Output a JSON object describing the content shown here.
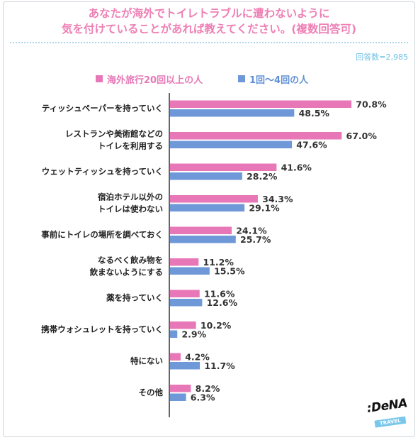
{
  "header": {
    "title_line1": "あなたが海外でトイレトラブルに遭わないように",
    "title_line2": "気を付けていることがあれば教えてください。(複数回答可)",
    "respondents": "回答数=2,985"
  },
  "colors": {
    "title": "#ee7fb4",
    "pink_bar": "#e777b7",
    "blue_bar": "#6f98d8",
    "legend_pink_text": "#e777b7",
    "legend_blue_text": "#5f8fd4",
    "axis": "#333333",
    "dots": "#a9d6ec",
    "respondents": "#6ec2e6"
  },
  "brand": {
    "logo_text": ":DeNA",
    "tag_text": "TRAVEL"
  },
  "chart_data": {
    "type": "bar",
    "orientation": "horizontal",
    "value_suffix": "%",
    "categories": [
      "ティッシュペーパーを持っていく",
      "レストランや美術館などの\nトイレを利用する",
      "ウェットティッシュを持っていく",
      "宿泊ホテル以外の\nトイレは使わない",
      "事前にトイレの場所を調べておく",
      "なるべく飲み物を\n飲まないようにする",
      "薬を持っていく",
      "携帯ウォシュレットを持っていく",
      "特にない",
      "その他"
    ],
    "series": [
      {
        "name": "海外旅行20回以上の人",
        "color": "#e777b7",
        "values": [
          70.8,
          67.0,
          41.6,
          34.3,
          24.1,
          11.2,
          11.6,
          10.2,
          4.2,
          8.2
        ]
      },
      {
        "name": "1回～4回の人",
        "color": "#6f98d8",
        "values": [
          48.5,
          47.6,
          28.2,
          29.1,
          25.7,
          15.5,
          12.6,
          2.9,
          11.7,
          6.3
        ]
      }
    ],
    "xlim": [
      0,
      80
    ],
    "grid": false,
    "legend": "top"
  }
}
